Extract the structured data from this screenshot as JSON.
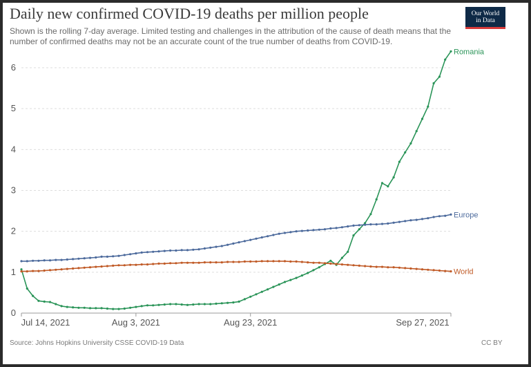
{
  "title": "Daily new confirmed COVID-19 deaths per million people",
  "subtitle": "Shown is the rolling 7-day average. Limited testing and challenges in the attribution of the cause of death means that the number of confirmed deaths may not be an accurate count of the true number of deaths from COVID-19.",
  "logo": {
    "line1": "Our World",
    "line2": "in Data",
    "bg": "#0e2a47",
    "accent": "#d73a3a"
  },
  "source": "Source: Johns Hopkins University CSSE COVID-19 Data",
  "license": "CC BY",
  "chart_data": {
    "type": "line",
    "xlabel": "",
    "ylabel": "",
    "ylim": [
      0,
      6
    ],
    "yticks": [
      0,
      1,
      2,
      3,
      4,
      5,
      6
    ],
    "xticks": [
      "Jul 14, 2021",
      "Aug 3, 2021",
      "Aug 23, 2021",
      "Sep 27, 2021"
    ],
    "x_start": "Jul 14, 2021",
    "x_end": "Sep 27, 2021",
    "grid": true,
    "series": [
      {
        "name": "Romania",
        "color": "#2a9458",
        "values": [
          1.07,
          0.6,
          0.42,
          0.3,
          0.28,
          0.27,
          0.22,
          0.17,
          0.15,
          0.14,
          0.13,
          0.13,
          0.12,
          0.12,
          0.12,
          0.11,
          0.1,
          0.1,
          0.11,
          0.13,
          0.15,
          0.17,
          0.19,
          0.19,
          0.2,
          0.21,
          0.22,
          0.22,
          0.21,
          0.2,
          0.21,
          0.22,
          0.22,
          0.22,
          0.23,
          0.24,
          0.25,
          0.26,
          0.28,
          0.34,
          0.4,
          0.46,
          0.52,
          0.58,
          0.64,
          0.7,
          0.76,
          0.81,
          0.86,
          0.92,
          0.98,
          1.05,
          1.12,
          1.2,
          1.28,
          1.18,
          1.35,
          1.5,
          1.9,
          2.05,
          2.2,
          2.42,
          2.78,
          3.18,
          3.1,
          3.32,
          3.7,
          3.93,
          4.15,
          4.45,
          4.75,
          5.05,
          5.62,
          5.78,
          6.2,
          6.4
        ]
      },
      {
        "name": "Europe",
        "color": "#4c6a9c",
        "values": [
          1.27,
          1.27,
          1.28,
          1.28,
          1.29,
          1.29,
          1.3,
          1.3,
          1.31,
          1.32,
          1.33,
          1.34,
          1.35,
          1.36,
          1.38,
          1.38,
          1.39,
          1.4,
          1.42,
          1.44,
          1.46,
          1.48,
          1.49,
          1.5,
          1.51,
          1.52,
          1.53,
          1.53,
          1.54,
          1.54,
          1.55,
          1.56,
          1.58,
          1.6,
          1.62,
          1.64,
          1.67,
          1.7,
          1.73,
          1.76,
          1.79,
          1.82,
          1.85,
          1.88,
          1.91,
          1.94,
          1.96,
          1.98,
          2.0,
          2.01,
          2.02,
          2.03,
          2.04,
          2.05,
          2.07,
          2.08,
          2.1,
          2.12,
          2.14,
          2.15,
          2.16,
          2.17,
          2.17,
          2.18,
          2.19,
          2.21,
          2.23,
          2.25,
          2.27,
          2.28,
          2.3,
          2.32,
          2.35,
          2.37,
          2.38,
          2.41
        ]
      },
      {
        "name": "World",
        "color": "#c05a26",
        "values": [
          1.02,
          1.02,
          1.03,
          1.03,
          1.04,
          1.05,
          1.06,
          1.07,
          1.08,
          1.09,
          1.1,
          1.11,
          1.12,
          1.13,
          1.14,
          1.15,
          1.16,
          1.17,
          1.17,
          1.18,
          1.18,
          1.19,
          1.19,
          1.2,
          1.21,
          1.21,
          1.22,
          1.22,
          1.23,
          1.23,
          1.23,
          1.23,
          1.24,
          1.24,
          1.24,
          1.24,
          1.25,
          1.25,
          1.25,
          1.26,
          1.26,
          1.26,
          1.27,
          1.27,
          1.27,
          1.27,
          1.27,
          1.26,
          1.26,
          1.25,
          1.24,
          1.23,
          1.23,
          1.22,
          1.21,
          1.2,
          1.19,
          1.18,
          1.17,
          1.16,
          1.15,
          1.14,
          1.13,
          1.13,
          1.12,
          1.12,
          1.11,
          1.1,
          1.09,
          1.08,
          1.07,
          1.06,
          1.05,
          1.04,
          1.03,
          1.02
        ]
      }
    ]
  }
}
